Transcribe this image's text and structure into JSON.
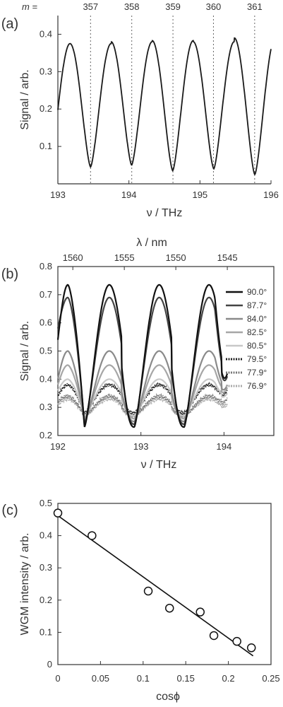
{
  "chart_data": [
    {
      "panel_label": "(a)",
      "type": "line",
      "xlabel": "ν / THz",
      "ylabel": "Signal / arb.",
      "xlim": [
        193,
        196
      ],
      "ylim": [
        0,
        0.45
      ],
      "xticks": [
        193,
        194,
        195,
        196
      ],
      "xtick_labels": [
        "193",
        "194",
        "195",
        "196"
      ],
      "yticks": [
        0.1,
        0.2,
        0.3,
        0.4
      ],
      "ytick_labels": [
        "0.1",
        "0.2",
        "0.3",
        "0.4"
      ],
      "top_axis_prefix": "m =",
      "mode_markers": [
        {
          "m": "357",
          "x": 193.46
        },
        {
          "m": "358",
          "x": 194.04
        },
        {
          "m": "359",
          "x": 194.62
        },
        {
          "m": "360",
          "x": 195.19
        },
        {
          "m": "361",
          "x": 195.77
        }
      ],
      "series": [
        {
          "color": "#1a1a1a",
          "minima": [
            193.46,
            194.04,
            194.62,
            195.19,
            195.77
          ],
          "min_values": [
            0.045,
            0.05,
            0.035,
            0.04,
            0.025
          ],
          "max_values": [
            0.375,
            0.38,
            0.383,
            0.38,
            0.39
          ]
        }
      ]
    },
    {
      "panel_label": "(b)",
      "type": "line",
      "xlabel": "ν / THz",
      "ylabel": "Signal / arb.",
      "top_xlabel": "λ / nm",
      "xlim": [
        192,
        194.6
      ],
      "ylim": [
        0.2,
        0.8
      ],
      "xticks": [
        192,
        193,
        194
      ],
      "xtick_labels": [
        "192",
        "193",
        "194"
      ],
      "yticks": [
        0.2,
        0.3,
        0.4,
        0.5,
        0.6,
        0.7,
        0.8
      ],
      "ytick_labels": [
        "0.2",
        "0.3",
        "0.4",
        "0.5",
        "0.6",
        "0.7",
        "0.8"
      ],
      "top_ticks": [
        {
          "label": "1560",
          "x": 192.18
        },
        {
          "label": "1555",
          "x": 192.8
        },
        {
          "label": "1550",
          "x": 193.42
        },
        {
          "label": "1545",
          "x": 194.04
        }
      ],
      "minima": [
        192.32,
        192.92,
        193.5
      ],
      "x_end": 194.04,
      "series": [
        {
          "name": "90.0°",
          "color": "#111111",
          "peak": 0.735,
          "trough": 0.23,
          "start": 0.54,
          "end": 0.42,
          "marker": false,
          "width": 2.2
        },
        {
          "name": "87.7°",
          "color": "#444444",
          "peak": 0.69,
          "trough": 0.24,
          "start": 0.58,
          "end": 0.41,
          "marker": false,
          "width": 2.2
        },
        {
          "name": "84.0°",
          "color": "#8a8a8a",
          "peak": 0.5,
          "trough": 0.25,
          "start": 0.4,
          "end": 0.38,
          "marker": false,
          "width": 2.2
        },
        {
          "name": "82.5°",
          "color": "#a6a6a6",
          "peak": 0.45,
          "trough": 0.26,
          "start": 0.38,
          "end": 0.37,
          "marker": false,
          "width": 2.2
        },
        {
          "name": "80.5°",
          "color": "#c8c8c8",
          "peak": 0.4,
          "trough": 0.27,
          "start": 0.36,
          "end": 0.35,
          "marker": false,
          "width": 2.2
        },
        {
          "name": "79.5°",
          "color": "#222222",
          "peak": 0.38,
          "trough": 0.28,
          "start": 0.34,
          "end": 0.36,
          "marker": true,
          "width": 1.4
        },
        {
          "name": "77.9°",
          "color": "#777777",
          "peak": 0.34,
          "trough": 0.27,
          "start": 0.32,
          "end": 0.33,
          "marker": true,
          "width": 1.4
        },
        {
          "name": "76.9°",
          "color": "#aaaaaa",
          "peak": 0.33,
          "trough": 0.27,
          "start": 0.31,
          "end": 0.31,
          "marker": true,
          "width": 1.4
        }
      ],
      "legend_position": "right"
    },
    {
      "panel_label": "(c)",
      "type": "scatter",
      "xlabel": "cosϕ",
      "ylabel": "WGM intensity / arb.",
      "xlim": [
        0,
        0.25
      ],
      "ylim": [
        0,
        0.5
      ],
      "xticks": [
        0,
        0.05,
        0.1,
        0.15,
        0.2,
        0.25
      ],
      "xtick_labels": [
        "0",
        "0.05",
        "0.1",
        "0.15",
        "0.2",
        "0.25"
      ],
      "yticks": [
        0,
        0.1,
        0.2,
        0.3,
        0.4,
        0.5
      ],
      "ytick_labels": [
        "0",
        "0.1",
        "0.2",
        "0.3",
        "0.4",
        "0.5"
      ],
      "points": [
        {
          "x": 0.0,
          "y": 0.47
        },
        {
          "x": 0.04,
          "y": 0.4
        },
        {
          "x": 0.106,
          "y": 0.228
        },
        {
          "x": 0.131,
          "y": 0.175
        },
        {
          "x": 0.167,
          "y": 0.163
        },
        {
          "x": 0.183,
          "y": 0.09
        },
        {
          "x": 0.21,
          "y": 0.072
        },
        {
          "x": 0.227,
          "y": 0.052
        }
      ],
      "fit_line": {
        "x": [
          0,
          0.229
        ],
        "y": [
          0.462,
          0.027
        ]
      }
    }
  ]
}
